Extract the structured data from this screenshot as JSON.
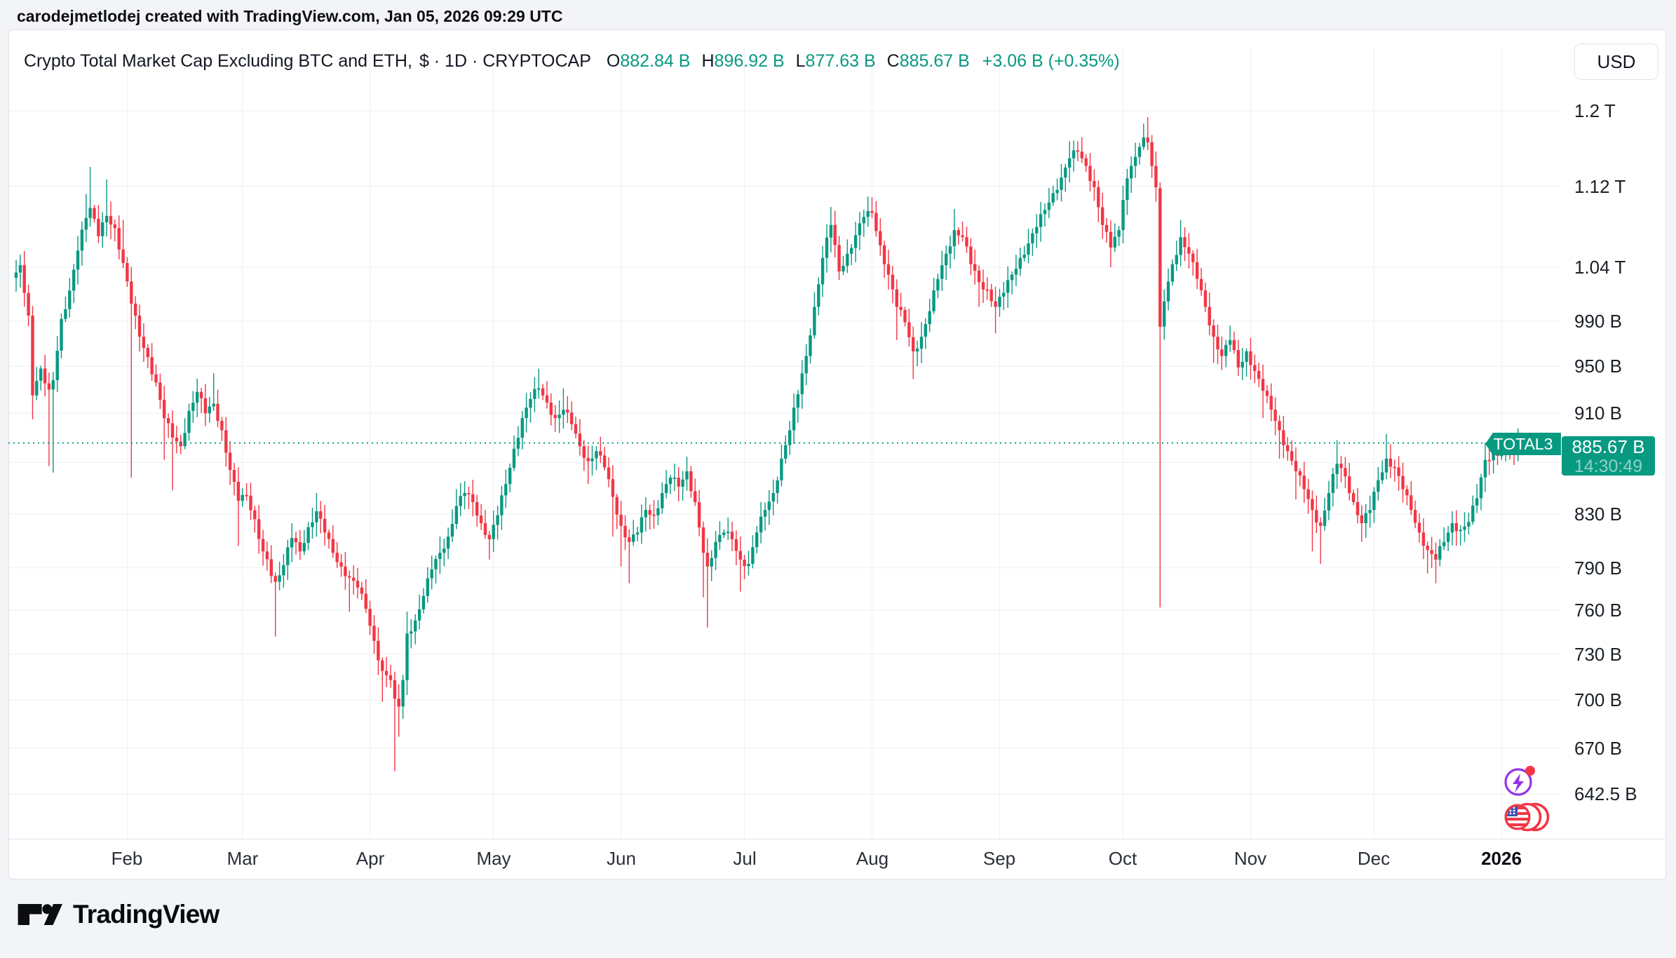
{
  "header": {
    "attribution": "carodejmetlodej created with TradingView.com, Jan 05, 2026 09:29 UTC"
  },
  "toolbar": {
    "currency_button": "USD"
  },
  "symbol": {
    "title": "Crypto Total Market Cap Excluding BTC and ETH,",
    "meta": "$ · 1D · CRYPTOCAP",
    "ohlc": [
      {
        "label": "O",
        "value": "882.84 B"
      },
      {
        "label": "H",
        "value": "896.92 B"
      },
      {
        "label": "L",
        "value": "877.63 B"
      },
      {
        "label": "C",
        "value": "885.67 B"
      }
    ],
    "change": "+3.06 B (+0.35%)"
  },
  "price_scale": {
    "ticks": [
      {
        "label": "1.2 T",
        "value": 1200
      },
      {
        "label": "1.12 T",
        "value": 1120
      },
      {
        "label": "1.04 T",
        "value": 1040
      },
      {
        "label": "990 B",
        "value": 990
      },
      {
        "label": "950 B",
        "value": 950
      },
      {
        "label": "910 B",
        "value": 910
      },
      {
        "label": "",
        "value": 870,
        "hidden": true
      },
      {
        "label": "830 B",
        "value": 830
      },
      {
        "label": "790 B",
        "value": 790
      },
      {
        "label": "760 B",
        "value": 760
      },
      {
        "label": "730 B",
        "value": 730
      },
      {
        "label": "700 B",
        "value": 700
      },
      {
        "label": "670 B",
        "value": 670
      },
      {
        "label": "642.5 B",
        "value": 642.5
      }
    ],
    "last_price_label": {
      "price": "885.67 B",
      "countdown": "14:30:49"
    }
  },
  "time_scale": {
    "labels": [
      {
        "label": "Feb",
        "day": 27
      },
      {
        "label": "Mar",
        "day": 55
      },
      {
        "label": "Apr",
        "day": 86
      },
      {
        "label": "May",
        "day": 116
      },
      {
        "label": "Jun",
        "day": 147
      },
      {
        "label": "Jul",
        "day": 177
      },
      {
        "label": "Aug",
        "day": 208
      },
      {
        "label": "Sep",
        "day": 239
      },
      {
        "label": "Oct",
        "day": 269
      },
      {
        "label": "Nov",
        "day": 300
      },
      {
        "label": "Dec",
        "day": 330
      },
      {
        "label": "2026",
        "day": 361,
        "bold": true
      }
    ]
  },
  "price_line": {
    "flag_label": "TOTAL3"
  },
  "footer": {
    "brand": "TradingView"
  },
  "icons": {
    "boost": "lightning-icon",
    "flags": "us-flag-globe-icon",
    "logo": "tradingview-logo-icon"
  },
  "colors": {
    "up": "#089981",
    "down": "#F23645",
    "accent": "#089981",
    "badge": "#F23645",
    "boost_purple": "#9333EA"
  },
  "chart_data": {
    "type": "candlestick",
    "symbol": "TOTAL3",
    "title": "Crypto Total Market Cap Excluding BTC and ETH",
    "exchange": "CRYPTOCAP",
    "interval": "1D",
    "currency": "USD",
    "yscale": "log",
    "y_unit": "billions USD",
    "ylim": [
      630,
      1280
    ],
    "x_start_date": "2025-01-05",
    "x_end_date": "2026-01-05",
    "days": 365,
    "grid": true,
    "last_price": 885.67,
    "last_candle": {
      "open": 882.84,
      "high": 896.92,
      "low": 877.63,
      "close": 885.67
    },
    "up_color": "#089981",
    "down_color": "#F23645",
    "waypoints_format": "[dayIndexFromJan5-2025, close, spikeHigh|null, spikeLow|null, openOverride|null]",
    "waypoints": [
      [
        0,
        1035,
        null,
        null,
        1030
      ],
      [
        1,
        1042,
        1052
      ],
      [
        3,
        995
      ],
      [
        4,
        925,
        null,
        905
      ],
      [
        6,
        948
      ],
      [
        8,
        930,
        null,
        867
      ],
      [
        9,
        938,
        null,
        862
      ],
      [
        11,
        992
      ],
      [
        13,
        1018
      ],
      [
        15,
        1056
      ],
      [
        17,
        1088,
        1112
      ],
      [
        18,
        1098,
        1140
      ],
      [
        20,
        1070
      ],
      [
        22,
        1090,
        1127
      ],
      [
        24,
        1078
      ],
      [
        26,
        1044,
        1086
      ],
      [
        28,
        1006,
        null,
        858
      ],
      [
        30,
        976
      ],
      [
        32,
        958
      ],
      [
        34,
        936
      ],
      [
        36,
        906,
        null,
        872
      ],
      [
        38,
        890,
        null,
        848
      ],
      [
        40,
        883
      ],
      [
        42,
        912
      ],
      [
        44,
        928
      ],
      [
        46,
        910
      ],
      [
        48,
        918,
        944
      ],
      [
        50,
        896
      ],
      [
        52,
        864
      ],
      [
        54,
        840,
        null,
        806
      ],
      [
        56,
        844
      ],
      [
        58,
        826
      ],
      [
        60,
        802
      ],
      [
        63,
        780,
        null,
        742
      ],
      [
        65,
        792
      ],
      [
        67,
        812
      ],
      [
        69,
        802
      ],
      [
        71,
        820
      ],
      [
        73,
        832,
        846
      ],
      [
        75,
        816
      ],
      [
        77,
        801
      ],
      [
        79,
        791
      ],
      [
        81,
        783,
        null,
        759
      ],
      [
        83,
        776
      ],
      [
        85,
        761
      ],
      [
        87,
        739
      ],
      [
        89,
        719,
        null,
        699
      ],
      [
        91,
        713
      ],
      [
        92,
        701,
        null,
        656
      ],
      [
        93,
        696,
        null,
        677
      ],
      [
        94,
        713
      ],
      [
        95,
        744,
        759
      ],
      [
        97,
        753
      ],
      [
        99,
        770
      ],
      [
        101,
        789
      ],
      [
        103,
        801,
        813
      ],
      [
        105,
        813
      ],
      [
        107,
        836,
        849
      ],
      [
        109,
        846
      ],
      [
        111,
        839
      ],
      [
        113,
        823
      ],
      [
        115,
        811,
        null,
        796
      ],
      [
        117,
        829
      ],
      [
        119,
        853
      ],
      [
        121,
        881
      ],
      [
        123,
        906
      ],
      [
        125,
        922
      ],
      [
        127,
        931,
        948
      ],
      [
        129,
        919
      ],
      [
        131,
        906
      ],
      [
        133,
        913,
        931
      ],
      [
        135,
        901
      ],
      [
        137,
        883
      ],
      [
        139,
        871,
        null,
        853
      ],
      [
        141,
        879
      ],
      [
        143,
        866
      ],
      [
        145,
        843,
        null,
        813
      ],
      [
        147,
        821,
        null,
        791
      ],
      [
        149,
        809,
        null,
        779
      ],
      [
        151,
        816
      ],
      [
        153,
        833
      ],
      [
        155,
        829
      ],
      [
        157,
        846
      ],
      [
        159,
        858
      ],
      [
        161,
        851
      ],
      [
        163,
        863,
        873
      ],
      [
        165,
        839
      ],
      [
        167,
        801,
        null,
        769
      ],
      [
        168,
        791,
        null,
        748
      ],
      [
        170,
        809
      ],
      [
        172,
        816
      ],
      [
        174,
        811
      ],
      [
        176,
        796,
        null,
        773
      ],
      [
        178,
        793
      ],
      [
        180,
        816
      ],
      [
        182,
        833
      ],
      [
        184,
        846
      ],
      [
        186,
        873
      ],
      [
        188,
        896
      ],
      [
        190,
        926
      ],
      [
        192,
        959
      ],
      [
        194,
        1003
      ],
      [
        196,
        1049
      ],
      [
        198,
        1081,
        1099
      ],
      [
        200,
        1036
      ],
      [
        202,
        1053
      ],
      [
        204,
        1071
      ],
      [
        206,
        1089
      ],
      [
        208,
        1093,
        1109
      ],
      [
        210,
        1061
      ],
      [
        212,
        1033
      ],
      [
        214,
        1003,
        null,
        973
      ],
      [
        216,
        989
      ],
      [
        218,
        963,
        null,
        939
      ],
      [
        220,
        976
      ],
      [
        222,
        999
      ],
      [
        224,
        1029
      ],
      [
        226,
        1053
      ],
      [
        228,
        1076,
        1097
      ],
      [
        230,
        1069
      ],
      [
        232,
        1043
      ],
      [
        234,
        1026,
        null,
        1003
      ],
      [
        236,
        1019
      ],
      [
        238,
        1003,
        null,
        979
      ],
      [
        240,
        1016
      ],
      [
        242,
        1033
      ],
      [
        244,
        1049
      ],
      [
        246,
        1063
      ],
      [
        248,
        1079
      ],
      [
        250,
        1096
      ],
      [
        252,
        1113
      ],
      [
        254,
        1129
      ],
      [
        256,
        1149,
        1167
      ],
      [
        258,
        1156
      ],
      [
        260,
        1141
      ],
      [
        262,
        1119
      ],
      [
        264,
        1081
      ],
      [
        266,
        1059,
        null,
        1040
      ],
      [
        268,
        1076
      ],
      [
        269,
        1106
      ],
      [
        271,
        1141
      ],
      [
        273,
        1161
      ],
      [
        274,
        1171,
        1186
      ],
      [
        275,
        1166,
        1193
      ],
      [
        276,
        1141
      ],
      [
        277,
        1119
      ],
      [
        278,
        985,
        null,
        762,
        1118
      ],
      [
        279,
        1008
      ],
      [
        281,
        1043
      ],
      [
        283,
        1069,
        1086
      ],
      [
        285,
        1053
      ],
      [
        287,
        1029
      ],
      [
        289,
        1003
      ],
      [
        291,
        976,
        null,
        953
      ],
      [
        293,
        959
      ],
      [
        295,
        973
      ],
      [
        297,
        949
      ],
      [
        299,
        963
      ],
      [
        301,
        946
      ],
      [
        303,
        929,
        null,
        906
      ],
      [
        305,
        913
      ],
      [
        307,
        896,
        null,
        873
      ],
      [
        309,
        879
      ],
      [
        311,
        863,
        null,
        841
      ],
      [
        313,
        849
      ],
      [
        315,
        833,
        null,
        802
      ],
      [
        317,
        821,
        null,
        793
      ],
      [
        319,
        846
      ],
      [
        321,
        869,
        888
      ],
      [
        323,
        859
      ],
      [
        325,
        839
      ],
      [
        327,
        823,
        null,
        809
      ],
      [
        329,
        833
      ],
      [
        331,
        856
      ],
      [
        333,
        873,
        893
      ],
      [
        335,
        866
      ],
      [
        337,
        849
      ],
      [
        339,
        833
      ],
      [
        341,
        816
      ],
      [
        343,
        803,
        null,
        786
      ],
      [
        345,
        796,
        null,
        779
      ],
      [
        347,
        809
      ],
      [
        349,
        823
      ],
      [
        351,
        818
      ],
      [
        353,
        824
      ],
      [
        355,
        842
      ],
      [
        357,
        872,
        886
      ],
      [
        359,
        878
      ],
      [
        361,
        876
      ],
      [
        363,
        881
      ],
      [
        364,
        879
      ],
      [
        365,
        885.67,
        896.92,
        877.63,
        882.84
      ]
    ]
  }
}
